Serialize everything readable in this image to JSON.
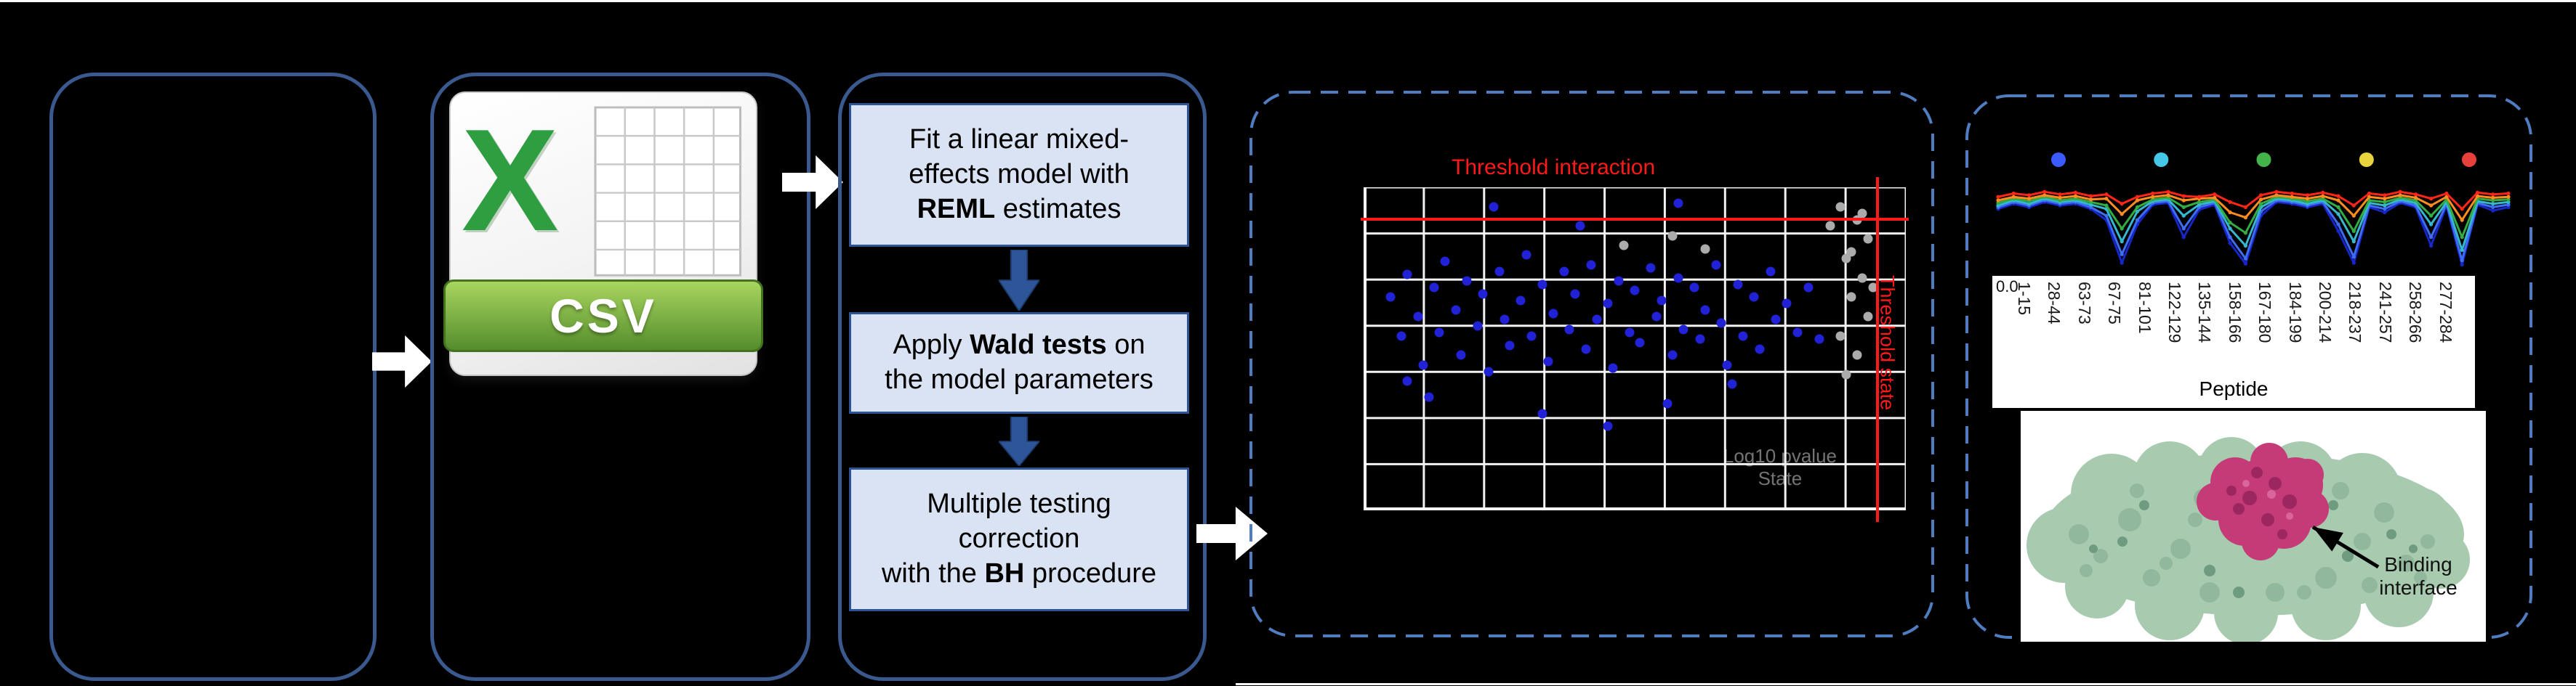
{
  "slide": {
    "background": "#000000"
  },
  "workflow": {
    "csv_icon": {
      "logo_letter": "X",
      "banner_label": "CSV"
    },
    "steps": [
      {
        "before": "Fit a linear mixed-\neffects model with\n",
        "bold": "REML",
        "after": " estimates"
      },
      {
        "before": "Apply ",
        "bold": "Wald tests",
        "after": " on\nthe model parameters"
      },
      {
        "before": "Multiple testing\ncorrection\nwith the ",
        "bold": "BH",
        "after": " procedure"
      }
    ]
  },
  "protein": {
    "caption": "Binding interface"
  },
  "chart_data": [
    {
      "type": "scatter",
      "title": "Threshold interaction",
      "side_label": "Threshold state",
      "axis_hint": "Log10 pvalue\nState",
      "grid": true,
      "thresholds": {
        "color": "#ff1a1a",
        "horizontal_pct_from_top": 9.5,
        "vertical_pct_from_left": 94.5
      },
      "series": [
        {
          "name": "significant",
          "color": "#2121d6",
          "points_pct": [
            [
              5,
              34
            ],
            [
              7,
              46
            ],
            [
              8,
              27
            ],
            [
              10,
              40
            ],
            [
              11,
              55
            ],
            [
              13,
              31
            ],
            [
              14,
              45
            ],
            [
              15,
              23
            ],
            [
              17,
              38
            ],
            [
              18,
              52
            ],
            [
              19,
              29
            ],
            [
              21,
              43
            ],
            [
              22,
              33
            ],
            [
              23,
              57
            ],
            [
              25,
              26
            ],
            [
              26,
              41
            ],
            [
              27,
              49
            ],
            [
              29,
              35
            ],
            [
              30,
              21
            ],
            [
              31,
              46
            ],
            [
              33,
              30
            ],
            [
              34,
              54
            ],
            [
              35,
              39
            ],
            [
              37,
              26
            ],
            [
              38,
              44
            ],
            [
              39,
              33
            ],
            [
              41,
              50
            ],
            [
              42,
              24
            ],
            [
              43,
              41
            ],
            [
              45,
              36
            ],
            [
              46,
              56
            ],
            [
              47,
              29
            ],
            [
              49,
              45
            ],
            [
              50,
              32
            ],
            [
              51,
              48
            ],
            [
              53,
              25
            ],
            [
              54,
              40
            ],
            [
              55,
              35
            ],
            [
              57,
              52
            ],
            [
              58,
              28
            ],
            [
              59,
              44
            ],
            [
              61,
              31
            ],
            [
              62,
              47
            ],
            [
              63,
              38
            ],
            [
              65,
              24
            ],
            [
              66,
              42
            ],
            [
              67,
              55
            ],
            [
              69,
              30
            ],
            [
              70,
              46
            ],
            [
              72,
              34
            ],
            [
              73,
              50
            ],
            [
              75,
              26
            ],
            [
              76,
              41
            ],
            [
              78,
              36
            ],
            [
              80,
              45
            ],
            [
              82,
              31
            ],
            [
              84,
              47
            ],
            [
              33,
              70
            ],
            [
              45,
              74
            ],
            [
              56,
              67
            ],
            [
              24,
              6
            ],
            [
              58,
              5
            ],
            [
              12,
              65
            ],
            [
              68,
              61
            ],
            [
              40,
              12
            ],
            [
              8,
              60
            ]
          ]
        },
        {
          "name": "not-significant",
          "color": "#ababab",
          "points_pct": [
            [
              88,
              6
            ],
            [
              91,
              10
            ],
            [
              93,
              16
            ],
            [
              89,
              22
            ],
            [
              92,
              28
            ],
            [
              90,
              34
            ],
            [
              93,
              40
            ],
            [
              88,
              46
            ],
            [
              91,
              52
            ],
            [
              89,
              58
            ],
            [
              92,
              8
            ],
            [
              90,
              20
            ],
            [
              94,
              31
            ],
            [
              57,
              15
            ],
            [
              48,
              18
            ],
            [
              63,
              19
            ],
            [
              86,
              12
            ]
          ]
        }
      ]
    },
    {
      "type": "line",
      "x_label": "Peptide",
      "y_first_tick": "0.0",
      "x_tick_labels": [
        "1-15",
        "28-44",
        "63-73",
        "67-75",
        "81-101",
        "122-129",
        "135-144",
        "158-166",
        "167-180",
        "184-199",
        "200-214",
        "218-237",
        "241-257",
        "258-266",
        "277-284"
      ],
      "legend_dot_colors": [
        "#3b5bff",
        "#45c8e8",
        "#43b34a",
        "#e8d33f",
        "#e8403a"
      ],
      "series": [
        {
          "name": "dark-blue",
          "color": "#1726c9",
          "values": [
            0.68,
            0.74,
            0.7,
            0.76,
            0.72,
            0.74,
            0.68,
            0.55,
            0.05,
            0.5,
            0.73,
            0.75,
            0.35,
            0.67,
            0.73,
            0.28,
            0.04,
            0.6,
            0.76,
            0.74,
            0.7,
            0.74,
            0.42,
            0.05,
            0.7,
            0.64,
            0.75,
            0.7,
            0.25,
            0.72,
            0.03,
            0.73,
            0.66,
            0.7
          ]
        },
        {
          "name": "blue",
          "color": "#3f6df2",
          "values": [
            0.7,
            0.76,
            0.72,
            0.78,
            0.74,
            0.76,
            0.7,
            0.6,
            0.15,
            0.55,
            0.75,
            0.77,
            0.45,
            0.7,
            0.75,
            0.35,
            0.1,
            0.65,
            0.78,
            0.76,
            0.72,
            0.76,
            0.5,
            0.12,
            0.72,
            0.68,
            0.77,
            0.72,
            0.35,
            0.74,
            0.08,
            0.75,
            0.7,
            0.73
          ]
        },
        {
          "name": "teal",
          "color": "#35b8cf",
          "values": [
            0.72,
            0.78,
            0.74,
            0.8,
            0.76,
            0.78,
            0.73,
            0.68,
            0.3,
            0.65,
            0.77,
            0.79,
            0.6,
            0.73,
            0.77,
            0.45,
            0.25,
            0.7,
            0.8,
            0.78,
            0.74,
            0.78,
            0.62,
            0.3,
            0.75,
            0.72,
            0.79,
            0.75,
            0.5,
            0.76,
            0.2,
            0.77,
            0.74,
            0.76
          ]
        },
        {
          "name": "green",
          "color": "#33ad43",
          "values": [
            0.75,
            0.8,
            0.77,
            0.82,
            0.78,
            0.8,
            0.76,
            0.72,
            0.45,
            0.7,
            0.79,
            0.81,
            0.7,
            0.76,
            0.79,
            0.52,
            0.4,
            0.74,
            0.82,
            0.8,
            0.77,
            0.8,
            0.7,
            0.42,
            0.78,
            0.76,
            0.81,
            0.78,
            0.6,
            0.79,
            0.35,
            0.8,
            0.78,
            0.79
          ]
        },
        {
          "name": "orange",
          "color": "#ff8c1e",
          "values": [
            0.78,
            0.82,
            0.8,
            0.84,
            0.81,
            0.83,
            0.79,
            0.8,
            0.62,
            0.78,
            0.82,
            0.84,
            0.78,
            0.8,
            0.81,
            0.64,
            0.58,
            0.79,
            0.84,
            0.82,
            0.8,
            0.83,
            0.78,
            0.6,
            0.82,
            0.8,
            0.84,
            0.81,
            0.72,
            0.82,
            0.55,
            0.83,
            0.81,
            0.82
          ]
        },
        {
          "name": "red",
          "color": "#ff2619",
          "values": [
            0.82,
            0.86,
            0.84,
            0.88,
            0.85,
            0.87,
            0.83,
            0.85,
            0.74,
            0.82,
            0.86,
            0.88,
            0.83,
            0.82,
            0.85,
            0.76,
            0.7,
            0.84,
            0.88,
            0.86,
            0.84,
            0.87,
            0.83,
            0.72,
            0.86,
            0.84,
            0.88,
            0.85,
            0.8,
            0.86,
            0.68,
            0.87,
            0.85,
            0.86
          ]
        }
      ]
    }
  ]
}
